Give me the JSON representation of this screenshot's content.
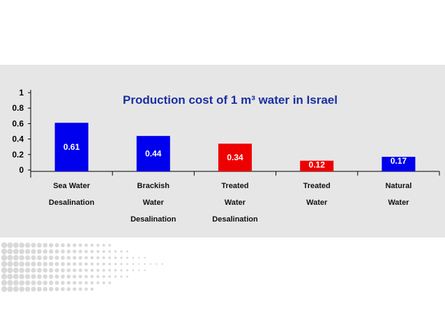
{
  "chart_data": {
    "type": "bar",
    "title": "Production cost of 1 m³ water in Israel",
    "categories": [
      [
        "Sea Water",
        "Desalination"
      ],
      [
        "Brackish",
        "Water",
        "Desalination"
      ],
      [
        "Treated",
        "Water",
        "Desalination"
      ],
      [
        "Treated",
        "Water"
      ],
      [
        "Natural",
        "Water"
      ]
    ],
    "values": [
      0.61,
      0.44,
      0.34,
      0.12,
      0.17
    ],
    "data_labels": [
      "0.61",
      "0.44",
      "0.34",
      "0.12",
      "0.17"
    ],
    "bar_colors": [
      "#0000ee",
      "#0000ee",
      "#ee0000",
      "#ee0000",
      "#0000ee"
    ],
    "yticks": [
      "0",
      "0.2",
      "0.4",
      "0.6",
      "0.8",
      "1"
    ],
    "ylim": [
      0,
      1
    ],
    "grid": false,
    "title_color": "#1a2fa0"
  }
}
